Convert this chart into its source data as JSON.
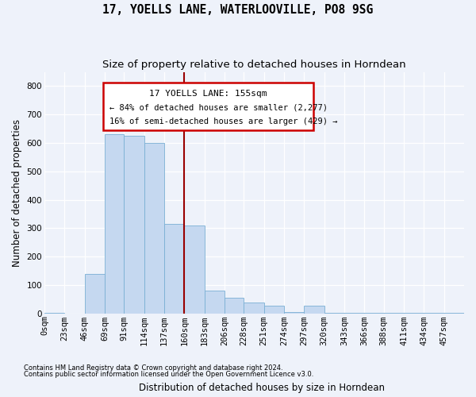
{
  "title": "17, YOELLS LANE, WATERLOOVILLE, PO8 9SG",
  "subtitle": "Size of property relative to detached houses in Horndean",
  "xlabel": "Distribution of detached houses by size in Horndean",
  "ylabel": "Number of detached properties",
  "bar_color": "#c5d8f0",
  "bar_edge_color": "#7aafd4",
  "vline_color": "#990000",
  "vline_x": 160,
  "categories": [
    "0sqm",
    "23sqm",
    "46sqm",
    "69sqm",
    "91sqm",
    "114sqm",
    "137sqm",
    "160sqm",
    "183sqm",
    "206sqm",
    "228sqm",
    "251sqm",
    "274sqm",
    "297sqm",
    "320sqm",
    "343sqm",
    "366sqm",
    "388sqm",
    "411sqm",
    "434sqm",
    "457sqm"
  ],
  "bin_edges": [
    0,
    23,
    46,
    69,
    91,
    114,
    137,
    160,
    183,
    206,
    228,
    251,
    274,
    297,
    320,
    343,
    366,
    388,
    411,
    434,
    457,
    480
  ],
  "bar_heights": [
    2,
    0,
    140,
    630,
    625,
    600,
    315,
    310,
    80,
    55,
    38,
    28,
    6,
    26,
    3,
    3,
    3,
    3,
    3,
    3,
    3
  ],
  "ylim": [
    0,
    850
  ],
  "yticks": [
    0,
    100,
    200,
    300,
    400,
    500,
    600,
    700,
    800
  ],
  "annotation_title": "17 YOELLS LANE: 155sqm",
  "annotation_line1": "← 84% of detached houses are smaller (2,277)",
  "annotation_line2": "16% of semi-detached houses are larger (429) →",
  "footer1": "Contains HM Land Registry data © Crown copyright and database right 2024.",
  "footer2": "Contains public sector information licensed under the Open Government Licence v3.0.",
  "background_color": "#eef2fa",
  "plot_bg_color": "#eef2fa",
  "grid_color": "#ffffff",
  "title_fontsize": 10.5,
  "subtitle_fontsize": 9.5,
  "axis_label_fontsize": 8.5,
  "tick_fontsize": 7.5,
  "footer_fontsize": 6.0
}
